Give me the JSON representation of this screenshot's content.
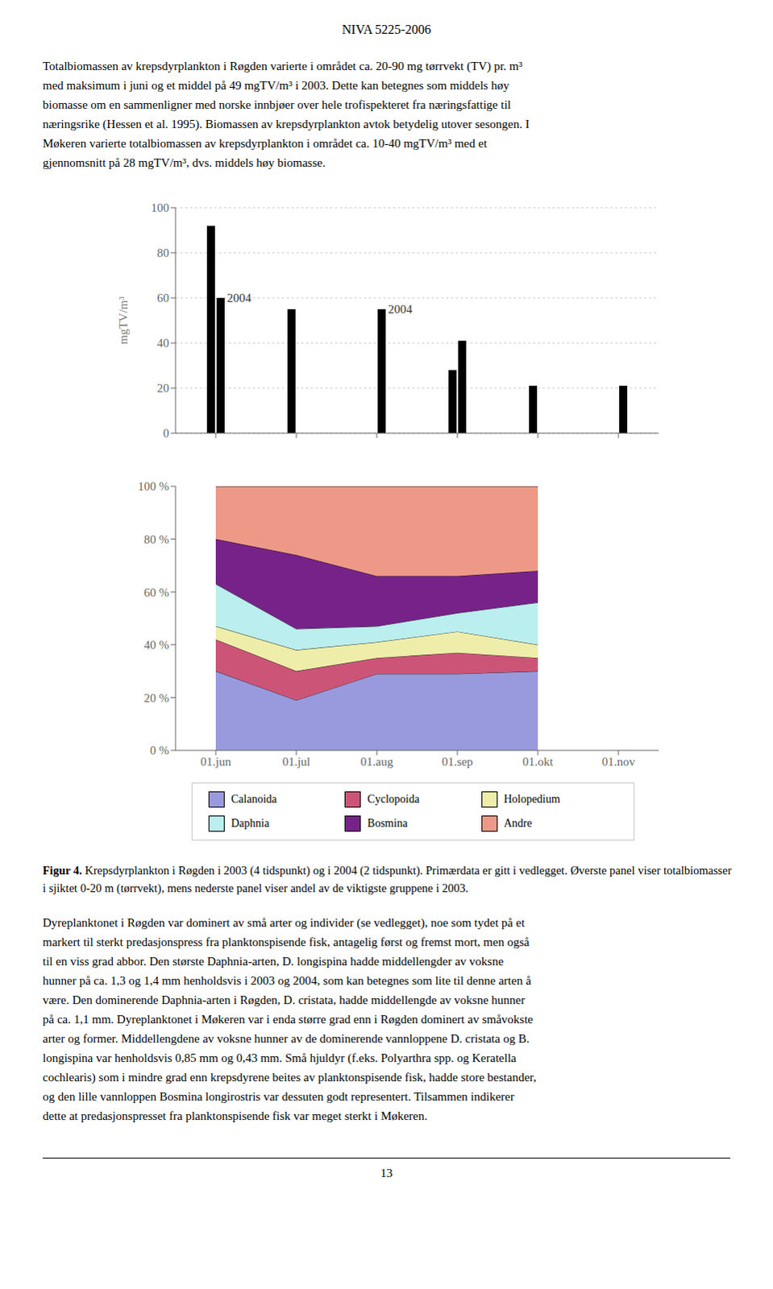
{
  "title": "NIVA 5225-2006",
  "text_above": [
    "Totalbiomassen av krepsdyrplankton i Røgden varierte i området ca. 20-90 mg tørrvekt (TV) pr. m³",
    "med maksimum i juni og et middel på 49 mgTV/m³ i 2003. Dette kan betegnes som middels høy",
    "biomasse om en sammenligner med norske innbjøer over hele trofispekteret fra næringsfattige til",
    "næringsrike (Hessen et al. 1995). Biomassen av krepsdyrplankton avtok betydelig utover sesongen. I",
    "Møkeren varierte totalbiomassen av krepsdyrplankton i området ca. 10-40 mgTV/m³ med et",
    "gjennomsnitt på 28 mgTV/m³, dvs. middels høy biomasse."
  ],
  "chart_data": [
    {
      "type": "bar",
      "categories": [
        null,
        null,
        null,
        null,
        null,
        null
      ],
      "series": [
        {
          "color": "#000000",
          "values": [
            92,
            55,
            null,
            28,
            21,
            null
          ]
        },
        {
          "color": "#000000",
          "values": [
            60,
            null,
            55,
            41,
            null,
            21
          ]
        }
      ],
      "ylabel": "mgTV/m³",
      "ylim": [
        0,
        100
      ],
      "yticks": [
        0,
        20,
        40,
        60,
        80,
        100
      ],
      "grid": true,
      "tick_labels": "y",
      "annotations": [
        {
          "text": "2004",
          "x": 0,
          "y": 60
        },
        {
          "text": "2004",
          "x": 2,
          "y": 55
        }
      ]
    },
    {
      "type": "area",
      "stacked": true,
      "categories": [
        "01.jun",
        "01.jul",
        "01.aug",
        "01.sep",
        "01.okt",
        "01.nov"
      ],
      "series": [
        {
          "name": "Calanoida",
          "color": "#9999dd",
          "values": [
            30,
            19,
            29,
            29,
            30,
            null
          ]
        },
        {
          "name": "Cyclopoida",
          "color": "#cc5577",
          "values": [
            12,
            11,
            6,
            8,
            5,
            null
          ]
        },
        {
          "name": "Holopedium",
          "color": "#eeeeaa",
          "values": [
            5,
            8,
            6,
            8,
            5,
            null
          ]
        },
        {
          "name": "Daphnia",
          "color": "#bbeeee",
          "values": [
            16,
            8,
            6,
            7,
            16,
            null
          ]
        },
        {
          "name": "Bosmina",
          "color": "#772288",
          "values": [
            17,
            28,
            19,
            14,
            12,
            null
          ]
        },
        {
          "name": "Andre",
          "color": "#ee9988",
          "values": [
            20,
            26,
            34,
            34,
            32,
            null
          ]
        }
      ],
      "ylim": [
        0,
        100
      ],
      "yticks": [
        {
          "value": 0,
          "label": "0 %"
        },
        {
          "value": 20,
          "label": "20 %"
        },
        {
          "value": 40,
          "label": "40 %"
        },
        {
          "value": 60,
          "label": "60 %"
        },
        {
          "value": 80,
          "label": "80 %"
        },
        {
          "value": 100,
          "label": "100 %"
        }
      ],
      "grid": false,
      "legend": "bottom"
    }
  ],
  "caption_label": "Figur 4.",
  "caption": "Krepsdyrplankton i Røgden i 2003 (4 tidspunkt) og i 2004 (2 tidspunkt). Primærdata er gitt i vedlegget. Øverste panel viser totalbiomasser i sjiktet 0-20 m (tørrvekt), mens nederste panel viser andel av de viktigste gruppene i 2003.",
  "text_below": [
    "Dyreplanktonet i Røgden var dominert av små arter og individer (se vedlegget), noe som tydet på et",
    "markert til sterkt predasjonspress fra planktonspisende fisk, antagelig først og fremst mort, men også",
    "til en viss grad abbor. Den største Daphnia-arten, D. longispina hadde middellengder av voksne",
    "hunner på ca. 1,3 og 1,4 mm henholdsvis i 2003 og 2004, som kan betegnes som lite til denne arten å",
    "være. Den dominerende Daphnia-arten i Røgden, D. cristata, hadde middellengde av voksne hunner",
    "på ca. 1,1 mm. Dyreplanktonet i Møkeren var i enda større grad enn i Røgden dominert av småvokste",
    "arter og former. Middellengdene av voksne hunner av de dominerende vannloppene D. cristata og B.",
    "longispina var henholdsvis 0,85 mm og 0,43 mm. Små hjuldyr (f.eks. Polyarthra spp. og Keratella",
    "cochlearis) som i mindre grad enn krepsdyrene beites av planktonspisende fisk, hadde store bestander,",
    "og den lille vannloppen Bosmina longirostris var dessuten godt representert. Tilsammen indikerer",
    "dette at predasjonspresset fra planktonspisende fisk var meget sterkt i Møkeren."
  ],
  "page_number": "13"
}
